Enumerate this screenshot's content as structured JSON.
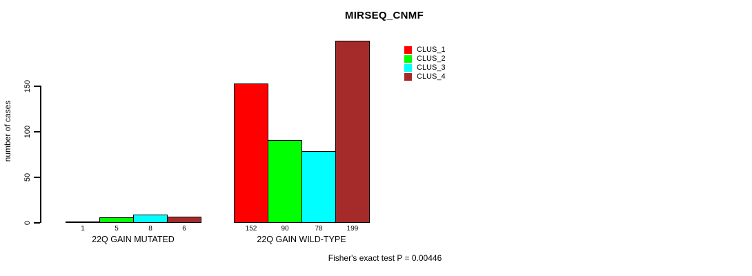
{
  "chart_data": {
    "type": "bar",
    "title": "MIRSEQ_CNMF",
    "ylabel": "number of cases",
    "ylim": [
      0,
      199
    ],
    "yticks": [
      0,
      50,
      100,
      150
    ],
    "grid": false,
    "legend_position": "top-right",
    "categories": [
      "22Q GAIN MUTATED",
      "22Q GAIN WILD-TYPE"
    ],
    "series": [
      {
        "name": "CLUS_1",
        "color": "#ff0000",
        "values": [
          1,
          152
        ]
      },
      {
        "name": "CLUS_2",
        "color": "#00ff00",
        "values": [
          5,
          90
        ]
      },
      {
        "name": "CLUS_3",
        "color": "#00ffff",
        "values": [
          8,
          78
        ]
      },
      {
        "name": "CLUS_4",
        "color": "#a52a2a",
        "values": [
          6,
          199
        ]
      }
    ],
    "bar_value_labels": [
      [
        1,
        5,
        8,
        6
      ],
      [
        152,
        90,
        78,
        199
      ]
    ],
    "annotation": "Fisher's exact test P = 0.00446"
  },
  "colors": {
    "background": "#ffffff",
    "axis": "#000000",
    "bar_border": "#000000",
    "text": "#000000"
  }
}
